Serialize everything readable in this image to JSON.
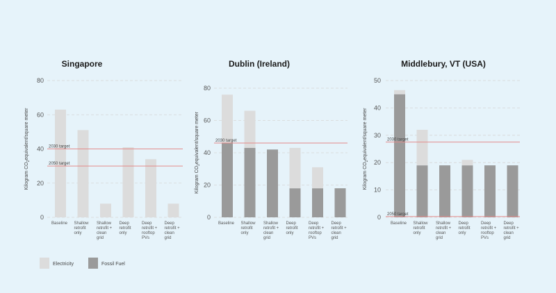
{
  "colors": {
    "background": "#e6f3fa",
    "electricity": "#dcdcdc",
    "fossil_fuel": "#9a9a9a",
    "target_line": "#e48a8a",
    "grid": "#d6d6d6"
  },
  "legend": {
    "electricity": "Electricity",
    "fossil_fuel": "Fossil Fuel"
  },
  "chart_data": [
    {
      "type": "bar",
      "stacked": true,
      "title": "Singapore",
      "ylabel_parts": [
        "Kilogram CO",
        "2",
        "equivalent/square meter"
      ],
      "ylim": [
        0,
        80
      ],
      "yticks": [
        0,
        20,
        40,
        60,
        80
      ],
      "grid": true,
      "categories": [
        [
          "Baseline"
        ],
        [
          "Shallow",
          "retrofit",
          "only"
        ],
        [
          "Shallow",
          "retrofit +",
          "clean",
          "grid"
        ],
        [
          "Deep",
          "retrofit",
          "only"
        ],
        [
          "Deep",
          "retrofit +",
          "rooftop",
          "PVs"
        ],
        [
          "Deep",
          "retrofit +",
          "clean",
          "grid"
        ]
      ],
      "series": [
        {
          "name": "Fossil Fuel",
          "color_key": "fossil_fuel",
          "values": [
            0,
            0,
            0,
            0,
            0,
            0
          ]
        },
        {
          "name": "Electricity",
          "color_key": "electricity",
          "values": [
            63,
            51,
            8,
            41,
            34,
            8
          ]
        }
      ],
      "targets": [
        {
          "label": "2030 target",
          "value": 40
        },
        {
          "label": "2050 target",
          "value": 30
        }
      ]
    },
    {
      "type": "bar",
      "stacked": true,
      "title": "Dublin (Ireland)",
      "ylabel_parts": [
        "Kilogram CO",
        "2",
        "equivalent/square meter"
      ],
      "ylim": [
        0,
        80
      ],
      "yticks": [
        0,
        20,
        40,
        60,
        80
      ],
      "grid": true,
      "categories": [
        [
          "Baseline"
        ],
        [
          "Shallow",
          "retrofit",
          "only"
        ],
        [
          "Shallow",
          "retrofit +",
          "clean",
          "grid"
        ],
        [
          "Deep",
          "retrofit",
          "only"
        ],
        [
          "Deep",
          "retrofit +",
          "rooftop",
          "PVs"
        ],
        [
          "Deep",
          "retrofit +",
          "clean",
          "grid"
        ]
      ],
      "series": [
        {
          "name": "Fossil Fuel",
          "color_key": "fossil_fuel",
          "values": [
            46,
            43,
            42,
            18,
            18,
            18
          ]
        },
        {
          "name": "Electricity",
          "color_key": "electricity",
          "values": [
            30,
            23,
            0,
            25,
            13,
            0
          ]
        }
      ],
      "targets": [
        {
          "label": "2030 target",
          "value": 46
        }
      ]
    },
    {
      "type": "bar",
      "stacked": true,
      "title": "Middlebury, VT (USA)",
      "ylabel_parts": [
        "Kilogram CO",
        "2",
        "equivalent/square meter"
      ],
      "ylim": [
        0,
        50
      ],
      "yticks": [
        0,
        10,
        20,
        30,
        40,
        50
      ],
      "grid": true,
      "categories": [
        [
          "Baseline"
        ],
        [
          "Shallow",
          "retrofit",
          "only"
        ],
        [
          "Shallow",
          "retrofit +",
          "clean",
          "grid"
        ],
        [
          "Deep",
          "retrofit",
          "only"
        ],
        [
          "Deep",
          "retrofit +",
          "rooftop",
          "PVs"
        ],
        [
          "Deep",
          "retrofit +",
          "clean",
          "grid"
        ]
      ],
      "series": [
        {
          "name": "Fossil Fuel",
          "color_key": "fossil_fuel",
          "values": [
            45,
            19,
            19,
            19,
            19,
            19
          ]
        },
        {
          "name": "Electricity",
          "color_key": "electricity",
          "values": [
            1.5,
            13,
            0,
            2,
            0,
            0
          ]
        }
      ],
      "targets": [
        {
          "label": "2030 target",
          "value": 27.5
        },
        {
          "label": "2050 target",
          "value": 0.3
        }
      ]
    }
  ]
}
